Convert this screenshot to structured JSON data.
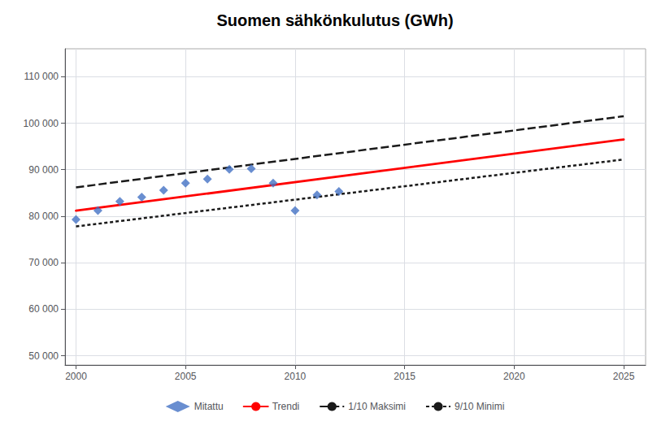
{
  "chart_data": {
    "type": "line",
    "title": "Suomen sähkönkulutus (GWh)",
    "xlim": [
      1999.5,
      2026
    ],
    "ylim": [
      48000,
      116000
    ],
    "xticks": [
      2000,
      2005,
      2010,
      2015,
      2020,
      2025
    ],
    "yticks": [
      {
        "value": 50000,
        "label": "50 000"
      },
      {
        "value": 60000,
        "label": "60 000"
      },
      {
        "value": 70000,
        "label": "70 000"
      },
      {
        "value": 80000,
        "label": "80 000"
      },
      {
        "value": 90000,
        "label": "90 000"
      },
      {
        "value": 100000,
        "label": "100 000"
      },
      {
        "value": 110000,
        "label": "110 000"
      }
    ],
    "grid": true,
    "legend": "bottom",
    "series": [
      {
        "name": "Mitattu",
        "type": "scatter",
        "marker": "diamond",
        "color": "#4472c4",
        "x": [
          2000,
          2001,
          2002,
          2003,
          2004,
          2005,
          2006,
          2007,
          2008,
          2009,
          2010,
          2011,
          2012
        ],
        "values": [
          79300,
          81200,
          83200,
          84100,
          85600,
          87100,
          88000,
          90100,
          90200,
          87100,
          81200,
          84600,
          85300
        ]
      },
      {
        "name": "Trendi",
        "type": "line",
        "line_style": "solid",
        "color": "#ff0000",
        "x": [
          2000,
          2025
        ],
        "values": [
          81200,
          96500
        ]
      },
      {
        "name": "1/10 Maksimi",
        "type": "line",
        "line_style": "dashed",
        "color": "#1a1a1a",
        "x": [
          2000,
          2025
        ],
        "values": [
          86200,
          101500
        ]
      },
      {
        "name": "9/10 Minimi",
        "type": "line",
        "line_style": "dotted",
        "color": "#1a1a1a",
        "x": [
          2000,
          2025
        ],
        "values": [
          77800,
          92200
        ]
      }
    ]
  }
}
